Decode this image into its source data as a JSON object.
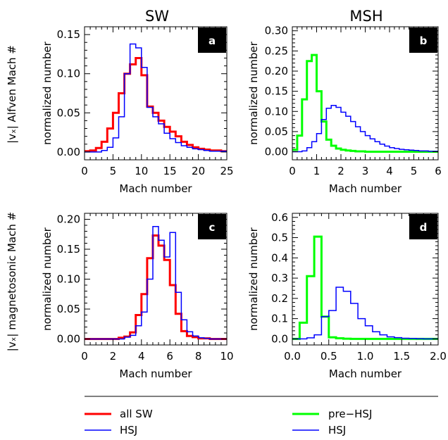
{
  "figure": {
    "col_titles": [
      "SW",
      "MSH"
    ],
    "row_labels": [
      "|vₓ| Alfven Mach #",
      "|vₓ| magnetosonic Mach #"
    ],
    "legend": {
      "left": [
        {
          "label": "all SW",
          "color": "#ff0000"
        },
        {
          "label": "HSJ",
          "color": "#0000ff"
        }
      ],
      "right": [
        {
          "label": "pre−HSJ",
          "color": "#00ff00"
        },
        {
          "label": "HSJ",
          "color": "#0000ff"
        }
      ]
    }
  },
  "chart_data": [
    {
      "type": "histogram",
      "panel": "a",
      "xlabel": "Mach number",
      "ylabel": "normalized number",
      "xlim": [
        0,
        25
      ],
      "ylim": [
        -0.01,
        0.16
      ],
      "xticks": [
        0,
        5,
        10,
        15,
        20,
        25
      ],
      "xtick_labels": [
        "0",
        "5",
        "10",
        "15",
        "20",
        "25"
      ],
      "yticks": [
        0,
        0.05,
        0.1,
        0.15
      ],
      "ytick_labels": [
        "0.00",
        "0.05",
        "0.10",
        "0.15"
      ],
      "bin_start": 0,
      "bin_width": 1,
      "series": [
        {
          "name": "all SW",
          "color": "#ff0000",
          "width": 3,
          "values": [
            0.001,
            0.002,
            0.005,
            0.013,
            0.03,
            0.05,
            0.075,
            0.1,
            0.112,
            0.12,
            0.098,
            0.058,
            0.05,
            0.04,
            0.032,
            0.026,
            0.02,
            0.013,
            0.009,
            0.006,
            0.004,
            0.003,
            0.002,
            0.002,
            0.001
          ]
        },
        {
          "name": "HSJ",
          "color": "#0000ff",
          "width": 1.5,
          "values": [
            0.0,
            0.0,
            0.0,
            0.002,
            0.006,
            0.018,
            0.045,
            0.1,
            0.138,
            0.133,
            0.108,
            0.057,
            0.045,
            0.036,
            0.024,
            0.017,
            0.012,
            0.008,
            0.006,
            0.004,
            0.003,
            0.002,
            0.001,
            0.001,
            0.001
          ]
        }
      ]
    },
    {
      "type": "histogram",
      "panel": "b",
      "xlabel": "Mach number",
      "ylabel": "normalized number",
      "xlim": [
        0,
        6
      ],
      "ylim": [
        -0.02,
        0.31
      ],
      "xticks": [
        0,
        1,
        2,
        3,
        4,
        5,
        6
      ],
      "xtick_labels": [
        "0",
        "1",
        "2",
        "3",
        "4",
        "5",
        "6"
      ],
      "yticks": [
        0,
        0.05,
        0.1,
        0.15,
        0.2,
        0.25,
        0.3
      ],
      "ytick_labels": [
        "0.00",
        "0.05",
        "0.10",
        "0.15",
        "0.20",
        "0.25",
        "0.30"
      ],
      "bin_start": 0,
      "bin_width": 0.2,
      "series": [
        {
          "name": "pre−HSJ",
          "color": "#00ff00",
          "width": 3,
          "values": [
            0.005,
            0.04,
            0.13,
            0.225,
            0.24,
            0.15,
            0.075,
            0.03,
            0.015,
            0.008,
            0.005,
            0.003,
            0.002,
            0.001,
            0.001,
            0.0,
            0.0,
            0.0,
            0.0,
            0.0,
            0.0,
            0.0,
            0.0,
            0.0,
            0.0,
            0.0,
            0.0,
            0.0,
            0.0,
            0.0
          ]
        },
        {
          "name": "HSJ",
          "color": "#0000ff",
          "width": 1.5,
          "values": [
            0.0,
            0.0,
            0.002,
            0.01,
            0.025,
            0.045,
            0.08,
            0.108,
            0.115,
            0.11,
            0.098,
            0.088,
            0.075,
            0.062,
            0.05,
            0.04,
            0.032,
            0.025,
            0.019,
            0.014,
            0.01,
            0.008,
            0.006,
            0.005,
            0.004,
            0.003,
            0.002,
            0.002,
            0.001,
            0.001
          ]
        }
      ]
    },
    {
      "type": "histogram",
      "panel": "c",
      "xlabel": "Mach number",
      "ylabel": "normalized number",
      "xlim": [
        0,
        10
      ],
      "ylim": [
        -0.01,
        0.21
      ],
      "xticks": [
        0,
        2,
        4,
        6,
        8,
        10
      ],
      "xtick_labels": [
        "0",
        "2",
        "4",
        "6",
        "8",
        "10"
      ],
      "yticks": [
        0,
        0.05,
        0.1,
        0.15,
        0.2
      ],
      "ytick_labels": [
        "0.00",
        "0.05",
        "0.10",
        "0.15",
        "0.20"
      ],
      "bin_start": 0,
      "bin_width": 0.4,
      "series": [
        {
          "name": "all SW",
          "color": "#ff0000",
          "width": 3,
          "values": [
            0.0,
            0.0,
            0.0,
            0.0,
            0.0,
            0.0,
            0.002,
            0.004,
            0.011,
            0.04,
            0.075,
            0.135,
            0.173,
            0.156,
            0.132,
            0.09,
            0.042,
            0.013,
            0.005,
            0.003,
            0.001,
            0.001,
            0.0,
            0.0,
            0.0
          ]
        },
        {
          "name": "HSJ",
          "color": "#0000ff",
          "width": 1.5,
          "values": [
            0.0,
            0.0,
            0.0,
            0.0,
            0.0,
            0.0,
            0.0,
            0.003,
            0.006,
            0.022,
            0.045,
            0.1,
            0.188,
            0.165,
            0.137,
            0.178,
            0.078,
            0.032,
            0.012,
            0.005,
            0.002,
            0.001,
            0.0,
            0.0,
            0.0
          ]
        }
      ]
    },
    {
      "type": "histogram",
      "panel": "d",
      "xlabel": "Mach number",
      "ylabel": "normalized number",
      "xlim": [
        0,
        2
      ],
      "ylim": [
        -0.03,
        0.62
      ],
      "xticks": [
        0,
        0.5,
        1.0,
        1.5,
        2.0
      ],
      "xtick_labels": [
        "0.0",
        "0.5",
        "1.0",
        "1.5",
        "2.0"
      ],
      "yticks": [
        0,
        0.1,
        0.2,
        0.3,
        0.4,
        0.5,
        0.6
      ],
      "ytick_labels": [
        "0.0",
        "0.1",
        "0.2",
        "0.3",
        "0.4",
        "0.5",
        "0.6"
      ],
      "bin_start": 0,
      "bin_width": 0.1,
      "series": [
        {
          "name": "pre−HSJ",
          "color": "#00ff00",
          "width": 3,
          "values": [
            0.0,
            0.08,
            0.31,
            0.505,
            0.11,
            0.008,
            0.003,
            0.001,
            0.0,
            0.0,
            0.0,
            0.0,
            0.0,
            0.0,
            0.0,
            0.0,
            0.0,
            0.0,
            0.0,
            0.0
          ]
        },
        {
          "name": "HSJ",
          "color": "#0000ff",
          "width": 1.5,
          "values": [
            0.0,
            0.0,
            0.005,
            0.02,
            0.11,
            0.14,
            0.255,
            0.235,
            0.175,
            0.1,
            0.065,
            0.035,
            0.02,
            0.01,
            0.006,
            0.003,
            0.002,
            0.001,
            0.0,
            0.0
          ]
        }
      ]
    }
  ]
}
